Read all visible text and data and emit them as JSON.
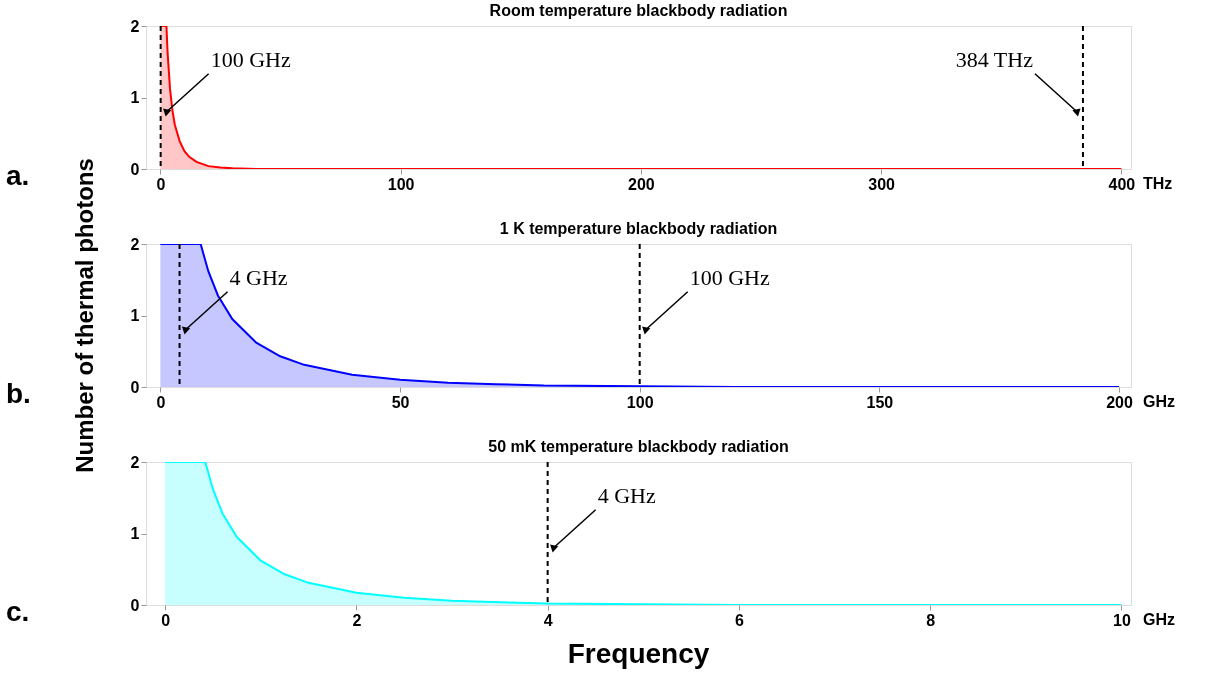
{
  "chart_data": [
    {
      "type": "area",
      "title": "Room temperature blackbody radiation",
      "xlabel": "THz",
      "annotations": [
        "a."
      ],
      "x": [
        0,
        2.5,
        3,
        4,
        5,
        6,
        8,
        10,
        12,
        15,
        20,
        25,
        30,
        40,
        60,
        100,
        200,
        300,
        400
      ],
      "series": [
        {
          "color": "#ff0000",
          "values": [
            2,
            2,
            1.62,
            1.12,
            0.82,
            0.62,
            0.39,
            0.25,
            0.17,
            0.1,
            0.04,
            0.02,
            0.01,
            0,
            0,
            0,
            0,
            0,
            0
          ]
        }
      ],
      "xlim": [
        -6,
        404
      ],
      "xticks": [
        0,
        100,
        200,
        300,
        400
      ],
      "ylim": [
        0,
        2
      ],
      "yticks": [
        0,
        1,
        2
      ],
      "ref_lines": [
        {
          "axis": "x",
          "value": 0.1,
          "label": "100 GHz",
          "line_style": "dashed",
          "color": "#000000"
        },
        {
          "axis": "x",
          "value": 384,
          "label": "384 THz",
          "line_style": "dashed",
          "color": "#000000"
        }
      ]
    },
    {
      "type": "area",
      "title": "1 K temperature blackbody radiation",
      "xlabel": "GHz",
      "ylabel": "Number of thermal photons",
      "annotations": [
        "b."
      ],
      "x": [
        0,
        8.4,
        10,
        12,
        15,
        20,
        25,
        30,
        40,
        50,
        60,
        70,
        80,
        100,
        120,
        150,
        200
      ],
      "series": [
        {
          "color": "#0000ff",
          "values": [
            2,
            2,
            1.62,
            1.28,
            0.95,
            0.62,
            0.43,
            0.31,
            0.17,
            0.1,
            0.06,
            0.04,
            0.02,
            0.01,
            0,
            0,
            0
          ]
        }
      ],
      "xlim": [
        -3,
        202.5
      ],
      "xticks": [
        0,
        50,
        100,
        150,
        200
      ],
      "ylim": [
        0,
        2
      ],
      "yticks": [
        0,
        1,
        2
      ],
      "ref_lines": [
        {
          "axis": "x",
          "value": 4,
          "label": "4 GHz",
          "line_style": "dashed",
          "color": "#000000"
        },
        {
          "axis": "x",
          "value": 100,
          "label": "100 GHz",
          "line_style": "dashed",
          "color": "#000000"
        }
      ]
    },
    {
      "type": "area",
      "title": "50 mK temperature blackbody radiation",
      "xlabel": "GHz",
      "annotations": [
        "c.",
        "Frequency"
      ],
      "x": [
        0,
        0.42,
        0.5,
        0.6,
        0.75,
        1,
        1.25,
        1.5,
        2,
        2.5,
        3,
        3.5,
        4,
        5,
        6,
        7.5,
        10
      ],
      "series": [
        {
          "color": "#00ffff",
          "values": [
            2,
            2,
            1.62,
            1.28,
            0.95,
            0.62,
            0.43,
            0.31,
            0.17,
            0.1,
            0.06,
            0.04,
            0.02,
            0.01,
            0,
            0,
            0
          ]
        }
      ],
      "xlim": [
        -0.2,
        10.1
      ],
      "xticks": [
        0,
        2,
        4,
        6,
        8,
        10
      ],
      "ylim": [
        0,
        2
      ],
      "yticks": [
        0,
        1,
        2
      ],
      "ref_lines": [
        {
          "axis": "x",
          "value": 4,
          "label": "4 GHz",
          "line_style": "dashed",
          "color": "#000000"
        }
      ]
    }
  ]
}
